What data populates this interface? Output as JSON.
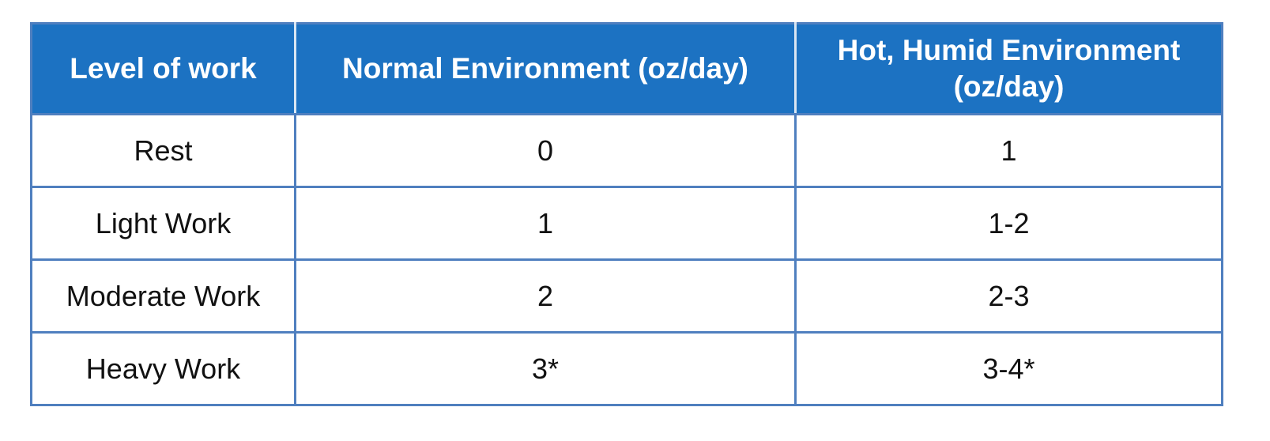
{
  "table": {
    "header": [
      "Level of work",
      "Normal Environment (oz/day)",
      "Hot, Humid Environment (oz/day)"
    ],
    "rows": [
      [
        "Rest",
        "0",
        "1"
      ],
      [
        "Light Work",
        "1",
        "1-2"
      ],
      [
        "Moderate Work",
        "2",
        "2-3"
      ],
      [
        "Heavy Work",
        "3*",
        "3-4*"
      ]
    ]
  }
}
